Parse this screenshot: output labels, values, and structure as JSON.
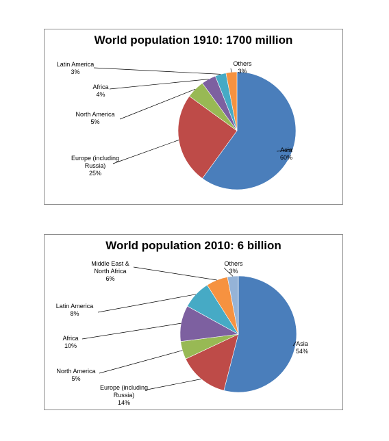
{
  "chart_data": [
    {
      "type": "pie",
      "title": "World population 1910: 1700 million",
      "categories": [
        "Asia",
        "Europe (including Russia)",
        "North America",
        "Africa",
        "Latin America",
        "Others"
      ],
      "values": [
        60,
        25,
        5,
        4,
        3,
        3
      ],
      "value_labels": [
        "60%",
        "25%",
        "5%",
        "4%",
        "3%",
        "3%"
      ],
      "label_lines": [
        [
          "Asia",
          "60%"
        ],
        [
          "Europe (including",
          "Russia)",
          "25%"
        ],
        [
          "North America",
          "5%"
        ],
        [
          "Africa",
          "4%"
        ],
        [
          "Latin America",
          "3%"
        ],
        [
          "Others",
          "3%"
        ]
      ],
      "colors": [
        "#4A7EBB",
        "#BE4B48",
        "#98B954",
        "#7D60A0",
        "#46AAC5",
        "#F69240"
      ],
      "legend": "none"
    },
    {
      "type": "pie",
      "title": "World population 2010: 6 billion",
      "categories": [
        "Asia",
        "Europe (including Russia)",
        "North America",
        "Africa",
        "Latin America",
        "Middle East & North Africa",
        "Others"
      ],
      "values": [
        54,
        14,
        5,
        10,
        8,
        6,
        3
      ],
      "value_labels": [
        "54%",
        "14%",
        "5%",
        "10%",
        "8%",
        "6%",
        "3%"
      ],
      "label_lines": [
        [
          "Asia",
          "54%"
        ],
        [
          "Europe (including",
          "Russia)",
          "14%"
        ],
        [
          "North America",
          "5%"
        ],
        [
          "Africa",
          "10%"
        ],
        [
          "Latin America",
          "8%"
        ],
        [
          "Middle East &",
          "North Africa",
          "6%"
        ],
        [
          "Others",
          "3%"
        ]
      ],
      "colors": [
        "#4A7EBB",
        "#BE4B48",
        "#98B954",
        "#7D60A0",
        "#46AAC5",
        "#F69240",
        "#95B3D7"
      ],
      "legend": "none"
    }
  ]
}
